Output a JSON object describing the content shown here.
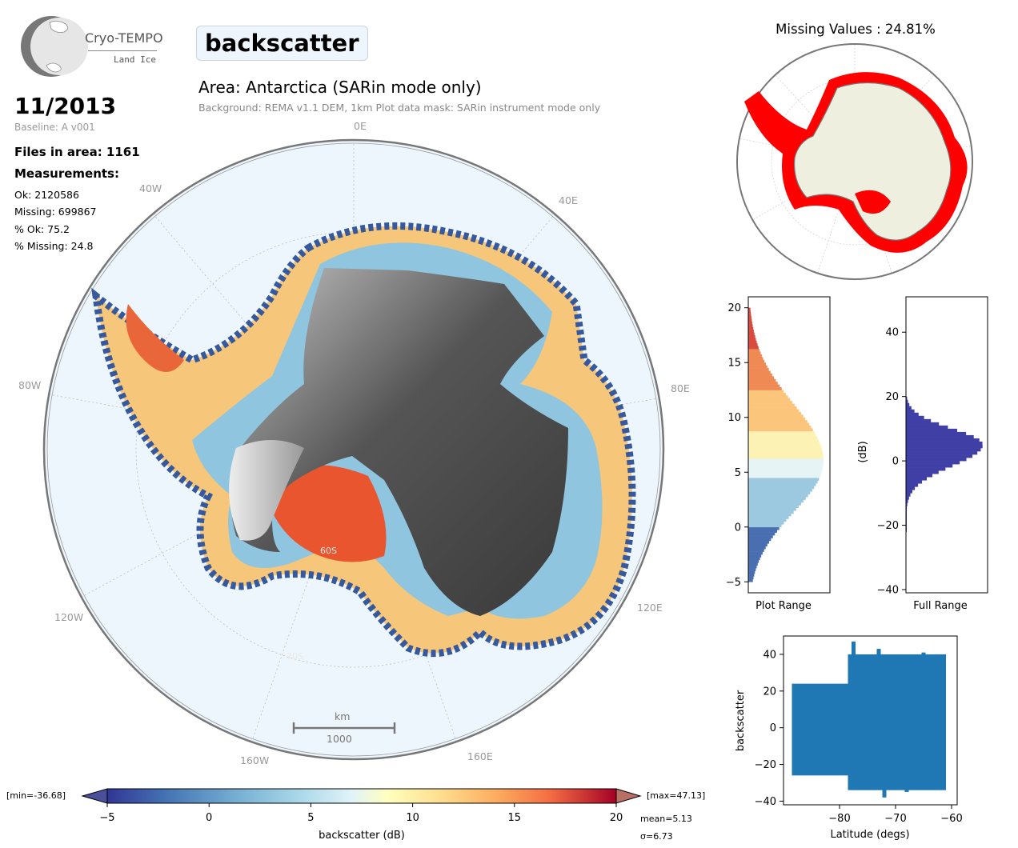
{
  "logo": {
    "name": "Cryo-TEMPO",
    "sub": "Land Ice"
  },
  "title": "backscatter",
  "area_title": "Area: Antarctica (SARin mode only)",
  "area_subtitle": "Background: REMA v1.1 DEM, 1km   Plot data mask: SARin instrument mode only",
  "date": "11/2013",
  "baseline": "Baseline: A v001",
  "files_in_area": "Files in area: 1161",
  "measurements_heading": "Measurements:",
  "stats": {
    "ok": "Ok: 2120586",
    "missing": "Missing: 699867",
    "pct_ok": "% Ok: 75.2",
    "pct_missing": "% Missing: 24.8"
  },
  "map": {
    "lon_labels": [
      "0E",
      "40E",
      "80E",
      "120E",
      "160E",
      "160W",
      "120W",
      "80W",
      "40W"
    ],
    "lat_labels": [
      "60S",
      "70S"
    ],
    "scalebar_unit": "km",
    "scalebar_value": "1000"
  },
  "missing_title": "Missing Values : 24.81%",
  "colors": {
    "missing": "#ff0000",
    "land": "#efefdf",
    "ocean": "#eef6fd",
    "hist_full": "#3f3fa6",
    "scatter": "#1f77b4"
  },
  "chart_data": [
    {
      "type": "heatmap",
      "name_id": "map",
      "colorbar": {
        "label": "backscatter (dB)",
        "ticks": [
          -5,
          0,
          5,
          10,
          15,
          20
        ],
        "range": [
          -5,
          20
        ],
        "colormap": "RdYlBu_r",
        "min_label": "[min=-36.68]",
        "max_label": "[max=47.13]",
        "mean_label": "mean=5.13",
        "sigma_label": "σ=6.73"
      }
    },
    {
      "type": "bar",
      "name_id": "plot-range-hist",
      "xlabel": "Plot Range",
      "orientation": "horizontal",
      "ylim": [
        -6,
        21
      ],
      "yticks": [
        -5,
        0,
        5,
        10,
        15,
        20
      ],
      "bin_width": 0.25,
      "peak": 6,
      "peak_left_sigma": 4.6,
      "peak_right_sigma": 5.2,
      "range": [
        -5,
        20
      ]
    },
    {
      "type": "bar",
      "name_id": "full-range-hist",
      "xlabel": "Full Range",
      "ylabel": "(dB)",
      "orientation": "horizontal",
      "ylim": [
        -41,
        51
      ],
      "yticks": [
        -40,
        -20,
        0,
        20,
        40
      ],
      "bin_width": 1,
      "peak": 5,
      "range": [
        -22,
        20
      ]
    },
    {
      "type": "scatter",
      "name_id": "lat-scatter",
      "xlabel": "Latitude (degs)",
      "ylabel": "backscatter",
      "xlim": [
        -90,
        -59
      ],
      "ylim": [
        -42,
        50
      ],
      "xticks": [
        -80,
        -70,
        -60
      ],
      "yticks": [
        -40,
        -20,
        0,
        20,
        40
      ],
      "bands": [
        {
          "x": [
            -88.5,
            -78.5
          ],
          "y": [
            -26,
            24
          ]
        },
        {
          "x": [
            -78.5,
            -61
          ],
          "y": [
            -34,
            40
          ]
        }
      ],
      "spikes": [
        {
          "x": -77.5,
          "y": 47
        },
        {
          "x": -73,
          "y": 43
        },
        {
          "x": -69,
          "y": 38
        },
        {
          "x": -65,
          "y": 41
        },
        {
          "x": -62.5,
          "y": 40
        },
        {
          "x": -72,
          "y": -38
        },
        {
          "x": -68,
          "y": -35
        }
      ]
    }
  ]
}
